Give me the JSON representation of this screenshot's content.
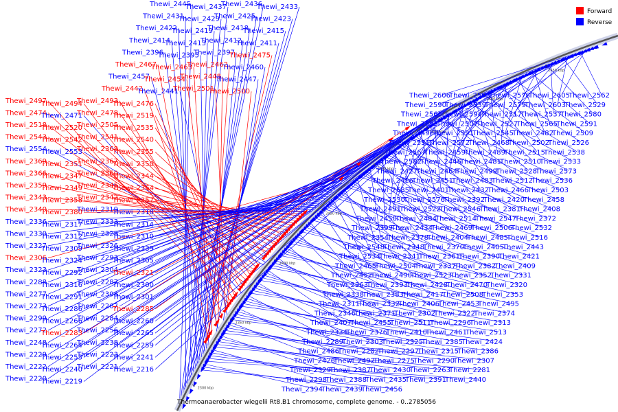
{
  "caption": "Thermoanaerobacter wiegelii Rt8.B1 chromosome, complete genome. - 0..2785056",
  "legend": [
    {
      "label": "Forward",
      "color": "#ff0000"
    },
    {
      "label": "Reverse",
      "color": "#0000ff"
    }
  ],
  "colors": {
    "forward": "#ff0000",
    "reverse": "#0000ff",
    "backbone": "#555555",
    "backbone_light": "#cfd3e8"
  },
  "ticks": [
    "2300 kbp",
    "2350 kbp",
    "2400 kbp",
    "2450 kbp",
    "2500 kbp",
    "2550 kbp",
    "2600 kbp",
    "2650 kbp"
  ],
  "labels_left": [
    {
      "id": "Thewi_2445",
      "s": "r"
    },
    {
      "id": "Thewi_2437",
      "s": "r"
    },
    {
      "id": "Thewi_2436",
      "s": "r"
    },
    {
      "id": "Thewi_2433",
      "s": "r"
    },
    {
      "id": "Thewi_2431",
      "s": "r"
    },
    {
      "id": "Thewi_2429",
      "s": "r"
    },
    {
      "id": "Thewi_2425",
      "s": "r"
    },
    {
      "id": "Thewi_2423",
      "s": "r"
    },
    {
      "id": "Thewi_2422",
      "s": "r"
    },
    {
      "id": "Thewi_2419",
      "s": "r"
    },
    {
      "id": "Thewi_2418",
      "s": "r"
    },
    {
      "id": "Thewi_2415",
      "s": "r"
    },
    {
      "id": "Thewi_2414",
      "s": "r"
    },
    {
      "id": "Thewi_2413",
      "s": "r"
    },
    {
      "id": "Thewi_2412",
      "s": "r"
    },
    {
      "id": "Thewi_2411",
      "s": "r"
    },
    {
      "id": "Thewi_2396",
      "s": "r"
    },
    {
      "id": "Thewi_2395",
      "s": "r"
    },
    {
      "id": "Thewi_2397",
      "s": "r"
    },
    {
      "id": "Thewi_2475",
      "s": "f"
    },
    {
      "id": "Thewi_2467",
      "s": "f"
    },
    {
      "id": "Thewi_2463",
      "s": "f"
    },
    {
      "id": "Thewi_2462",
      "s": "f"
    },
    {
      "id": "Thewi_2460",
      "s": "r"
    },
    {
      "id": "Thewi_2457",
      "s": "r"
    },
    {
      "id": "Thewi_2454",
      "s": "f"
    },
    {
      "id": "Thewi_2448",
      "s": "f"
    },
    {
      "id": "Thewi_2447",
      "s": "r"
    },
    {
      "id": "Thewi_2442",
      "s": "f"
    },
    {
      "id": "Thewi_2441",
      "s": "r"
    },
    {
      "id": "Thewi_2501",
      "s": "f"
    },
    {
      "id": "Thewi_2500",
      "s": "f"
    },
    {
      "id": "Thewi_2497",
      "s": "f"
    },
    {
      "id": "Thewi_2494",
      "s": "f"
    },
    {
      "id": "Thewi_2493",
      "s": "f"
    },
    {
      "id": "Thewi_2476",
      "s": "f"
    },
    {
      "id": "Thewi_2474",
      "s": "f"
    },
    {
      "id": "Thewi_2471",
      "s": "r"
    },
    {
      "id": "Thewi_2478",
      "s": "f"
    },
    {
      "id": "Thewi_2519",
      "s": "f"
    },
    {
      "id": "Thewi_2518",
      "s": "f"
    },
    {
      "id": "Thewi_2520",
      "s": "f"
    },
    {
      "id": "Thewi_2505",
      "s": "f"
    },
    {
      "id": "Thewi_2535",
      "s": "f"
    },
    {
      "id": "Thewi_2543",
      "s": "f"
    },
    {
      "id": "Thewi_2542",
      "s": "f"
    },
    {
      "id": "Thewi_2541",
      "s": "f"
    },
    {
      "id": "Thewi_2540",
      "s": "f"
    },
    {
      "id": "Thewi_2554",
      "s": "r"
    },
    {
      "id": "Thewi_2553",
      "s": "r"
    },
    {
      "id": "Thewi_2368",
      "s": "f"
    },
    {
      "id": "Thewi_2355",
      "s": "f"
    },
    {
      "id": "Thewi_2369",
      "s": "f"
    },
    {
      "id": "Thewi_2351",
      "s": "f"
    },
    {
      "id": "Thewi_2367",
      "s": "f"
    },
    {
      "id": "Thewi_2350",
      "s": "f"
    },
    {
      "id": "Thewi_2366",
      "s": "f"
    },
    {
      "id": "Thewi_2347",
      "s": "f"
    },
    {
      "id": "Thewi_2360",
      "s": "f"
    },
    {
      "id": "Thewi_2344",
      "s": "f"
    },
    {
      "id": "Thewi_2359",
      "s": "f"
    },
    {
      "id": "Thewi_2349",
      "s": "f"
    },
    {
      "id": "Thewi_2345",
      "s": "f"
    },
    {
      "id": "Thewi_2364",
      "s": "f"
    },
    {
      "id": "Thewi_2343",
      "s": "f"
    },
    {
      "id": "Thewi_2358",
      "s": "f"
    },
    {
      "id": "Thewi_2342",
      "s": "f"
    },
    {
      "id": "Thewi_2357",
      "s": "f"
    },
    {
      "id": "Thewi_2340",
      "s": "f"
    },
    {
      "id": "Thewi_2380",
      "s": "f"
    },
    {
      "id": "Thewi_2319",
      "s": "r"
    },
    {
      "id": "Thewi_2318",
      "s": "r"
    },
    {
      "id": "Thewi_2336",
      "s": "r"
    },
    {
      "id": "Thewi_2317",
      "s": "r"
    },
    {
      "id": "Thewi_2333",
      "s": "r"
    },
    {
      "id": "Thewi_2314",
      "s": "r"
    },
    {
      "id": "Thewi_2330",
      "s": "r"
    },
    {
      "id": "Thewi_2312",
      "s": "r"
    },
    {
      "id": "Thewi_2328",
      "s": "r"
    },
    {
      "id": "Thewi_2310",
      "s": "r"
    },
    {
      "id": "Thewi_2327",
      "s": "r"
    },
    {
      "id": "Thewi_2309",
      "s": "r"
    },
    {
      "id": "Thewi_2326",
      "s": "r"
    },
    {
      "id": "Thewi_2339",
      "s": "r"
    },
    {
      "id": "Thewi_2306",
      "s": "f"
    },
    {
      "id": "Thewi_2324",
      "s": "r"
    },
    {
      "id": "Thewi_2293",
      "s": "r"
    },
    {
      "id": "Thewi_2305",
      "s": "r"
    },
    {
      "id": "Thewi_2323",
      "s": "r"
    },
    {
      "id": "Thewi_2292",
      "s": "r"
    },
    {
      "id": "Thewi_2304",
      "s": "r"
    },
    {
      "id": "Thewi_2321",
      "s": "f"
    },
    {
      "id": "Thewi_2288",
      "s": "r"
    },
    {
      "id": "Thewi_2316",
      "s": "r"
    },
    {
      "id": "Thewi_2287",
      "s": "r"
    },
    {
      "id": "Thewi_2300",
      "s": "r"
    },
    {
      "id": "Thewi_2277",
      "s": "r"
    },
    {
      "id": "Thewi_2291",
      "s": "r"
    },
    {
      "id": "Thewi_2308",
      "s": "r"
    },
    {
      "id": "Thewi_2301",
      "s": "r"
    },
    {
      "id": "Thewi_2273",
      "s": "r"
    },
    {
      "id": "Thewi_2286",
      "s": "r"
    },
    {
      "id": "Thewi_2267",
      "s": "r"
    },
    {
      "id": "Thewi_2285",
      "s": "f"
    },
    {
      "id": "Thewi_2299",
      "s": "r"
    },
    {
      "id": "Thewi_2266",
      "s": "r"
    },
    {
      "id": "Thewi_2284",
      "s": "r"
    },
    {
      "id": "Thewi_2260",
      "s": "r"
    },
    {
      "id": "Thewi_2272",
      "s": "r"
    },
    {
      "id": "Thewi_2283",
      "s": "f"
    },
    {
      "id": "Thewi_2256",
      "s": "r"
    },
    {
      "id": "Thewi_2265",
      "s": "r"
    },
    {
      "id": "Thewi_2248",
      "s": "r"
    },
    {
      "id": "Thewi_2264",
      "s": "r"
    },
    {
      "id": "Thewi_2238",
      "s": "r"
    },
    {
      "id": "Thewi_2259",
      "s": "r"
    },
    {
      "id": "Thewi_2229",
      "s": "r"
    },
    {
      "id": "Thewi_2253",
      "s": "r"
    },
    {
      "id": "Thewi_2223",
      "s": "r"
    },
    {
      "id": "Thewi_2241",
      "s": "r"
    },
    {
      "id": "Thewi_2222",
      "s": "r"
    },
    {
      "id": "Thewi_2240",
      "s": "r"
    },
    {
      "id": "Thewi_2221",
      "s": "r"
    },
    {
      "id": "Thewi_2216",
      "s": "r"
    },
    {
      "id": "Thewi_2220",
      "s": "r"
    },
    {
      "id": "Thewi_2219",
      "s": "r"
    }
  ],
  "labels_right": [
    {
      "id": "Thewi_2606",
      "s": "r"
    },
    {
      "id": "Thewi_2593",
      "s": "r"
    },
    {
      "id": "Thewi_2578",
      "s": "r"
    },
    {
      "id": "Thewi_2605",
      "s": "r"
    },
    {
      "id": "Thewi_2562",
      "s": "r"
    },
    {
      "id": "Thewi_2590",
      "s": "r"
    },
    {
      "id": "Thewi_2539",
      "s": "r"
    },
    {
      "id": "Thewi_2579",
      "s": "r"
    },
    {
      "id": "Thewi_2603",
      "s": "r"
    },
    {
      "id": "Thewi_2529",
      "s": "r"
    },
    {
      "id": "Thewi_2566",
      "s": "r"
    },
    {
      "id": "Thewi_2594",
      "s": "r"
    },
    {
      "id": "Thewi_2517",
      "s": "r"
    },
    {
      "id": "Thewi_2537",
      "s": "r"
    },
    {
      "id": "Thewi_2580",
      "s": "r"
    },
    {
      "id": "Thewi_2595",
      "s": "r"
    },
    {
      "id": "Thewi_2507",
      "s": "r"
    },
    {
      "id": "Thewi_2527",
      "s": "r"
    },
    {
      "id": "Thewi_2565",
      "s": "r"
    },
    {
      "id": "Thewi_2591",
      "s": "r"
    },
    {
      "id": "Thewi_2496",
      "s": "r"
    },
    {
      "id": "Thewi_2521",
      "s": "r"
    },
    {
      "id": "Thewi_2545",
      "s": "r"
    },
    {
      "id": "Thewi_2482",
      "s": "r"
    },
    {
      "id": "Thewi_2509",
      "s": "r"
    },
    {
      "id": "Thewi_2531",
      "s": "r"
    },
    {
      "id": "Thewi_2572",
      "s": "r"
    },
    {
      "id": "Thewi_2468",
      "s": "r"
    },
    {
      "id": "Thewi_2502",
      "s": "r"
    },
    {
      "id": "Thewi_2526",
      "s": "r"
    },
    {
      "id": "Thewi_2567",
      "s": "r"
    },
    {
      "id": "Thewi_2459",
      "s": "r"
    },
    {
      "id": "Thewi_2489",
      "s": "r"
    },
    {
      "id": "Thewi_2515",
      "s": "r"
    },
    {
      "id": "Thewi_2538",
      "s": "r"
    },
    {
      "id": "Thewi_2582",
      "s": "r"
    },
    {
      "id": "Thewi_2446",
      "s": "r"
    },
    {
      "id": "Thewi_2481",
      "s": "r"
    },
    {
      "id": "Thewi_2510",
      "s": "r"
    },
    {
      "id": "Thewi_2533",
      "s": "r"
    },
    {
      "id": "Thewi_2427",
      "s": "r"
    },
    {
      "id": "Thewi_2464",
      "s": "r"
    },
    {
      "id": "Thewi_2499",
      "s": "r"
    },
    {
      "id": "Thewi_2528",
      "s": "r"
    },
    {
      "id": "Thewi_2573",
      "s": "r"
    },
    {
      "id": "Thewi_2416",
      "s": "r"
    },
    {
      "id": "Thewi_2451",
      "s": "r"
    },
    {
      "id": "Thewi_2483",
      "s": "r"
    },
    {
      "id": "Thewi_2512",
      "s": "r"
    },
    {
      "id": "Thewi_2536",
      "s": "r"
    },
    {
      "id": "Thewi_2585",
      "s": "r"
    },
    {
      "id": "Thewi_2401",
      "s": "r"
    },
    {
      "id": "Thewi_2432",
      "s": "r"
    },
    {
      "id": "Thewi_2466",
      "s": "r"
    },
    {
      "id": "Thewi_2503",
      "s": "r"
    },
    {
      "id": "Thewi_2530",
      "s": "r"
    },
    {
      "id": "Thewi_2576",
      "s": "r"
    },
    {
      "id": "Thewi_2392",
      "s": "r"
    },
    {
      "id": "Thewi_2420",
      "s": "r"
    },
    {
      "id": "Thewi_2458",
      "s": "r"
    },
    {
      "id": "Thewi_2491",
      "s": "r"
    },
    {
      "id": "Thewi_2522",
      "s": "r"
    },
    {
      "id": "Thewi_2546",
      "s": "r"
    },
    {
      "id": "Thewi_2381",
      "s": "r"
    },
    {
      "id": "Thewi_2408",
      "s": "r"
    },
    {
      "id": "Thewi_2450",
      "s": "r"
    },
    {
      "id": "Thewi_2484",
      "s": "r"
    },
    {
      "id": "Thewi_2514",
      "s": "r"
    },
    {
      "id": "Thewi_2547",
      "s": "r"
    },
    {
      "id": "Thewi_2372",
      "s": "r"
    },
    {
      "id": "Thewi_2399",
      "s": "r"
    },
    {
      "id": "Thewi_2434",
      "s": "r"
    },
    {
      "id": "Thewi_2469",
      "s": "r"
    },
    {
      "id": "Thewi_2506",
      "s": "r"
    },
    {
      "id": "Thewi_2532",
      "s": "r"
    },
    {
      "id": "Thewi_2354",
      "s": "r"
    },
    {
      "id": "Thewi_2378",
      "s": "r"
    },
    {
      "id": "Thewi_2404",
      "s": "r"
    },
    {
      "id": "Thewi_2485",
      "s": "r"
    },
    {
      "id": "Thewi_2516",
      "s": "r"
    },
    {
      "id": "Thewi_2548",
      "s": "r"
    },
    {
      "id": "Thewi_2348",
      "s": "r"
    },
    {
      "id": "Thewi_2370",
      "s": "r"
    },
    {
      "id": "Thewi_2405",
      "s": "r"
    },
    {
      "id": "Thewi_2443",
      "s": "r"
    },
    {
      "id": "Thewi_2534",
      "s": "r"
    },
    {
      "id": "Thewi_2341",
      "s": "r"
    },
    {
      "id": "Thewi_2361",
      "s": "r"
    },
    {
      "id": "Thewi_2390",
      "s": "r"
    },
    {
      "id": "Thewi_2421",
      "s": "r"
    },
    {
      "id": "Thewi_2465",
      "s": "r"
    },
    {
      "id": "Thewi_2504",
      "s": "r"
    },
    {
      "id": "Thewi_2337",
      "s": "r"
    },
    {
      "id": "Thewi_2382",
      "s": "r"
    },
    {
      "id": "Thewi_2409",
      "s": "r"
    },
    {
      "id": "Thewi_2452",
      "s": "r"
    },
    {
      "id": "Thewi_2490",
      "s": "r"
    },
    {
      "id": "Thewi_2523",
      "s": "r"
    },
    {
      "id": "Thewi_2352",
      "s": "r"
    },
    {
      "id": "Thewi_2331",
      "s": "r"
    },
    {
      "id": "Thewi_2363",
      "s": "r"
    },
    {
      "id": "Thewi_2393",
      "s": "r"
    },
    {
      "id": "Thewi_2428",
      "s": "r"
    },
    {
      "id": "Thewi_2470",
      "s": "r"
    },
    {
      "id": "Thewi_2320",
      "s": "r"
    },
    {
      "id": "Thewi_2338",
      "s": "r"
    },
    {
      "id": "Thewi_2383",
      "s": "r"
    },
    {
      "id": "Thewi_2417",
      "s": "r"
    },
    {
      "id": "Thewi_2508",
      "s": "r"
    },
    {
      "id": "Thewi_2353",
      "s": "r"
    },
    {
      "id": "Thewi_2311",
      "s": "r"
    },
    {
      "id": "Thewi_2332",
      "s": "r"
    },
    {
      "id": "Thewi_2406",
      "s": "r"
    },
    {
      "id": "Thewi_2453",
      "s": "r"
    },
    {
      "id": "Thewi_2495",
      "s": "r"
    },
    {
      "id": "Thewi_2346",
      "s": "r"
    },
    {
      "id": "Thewi_2371",
      "s": "r"
    },
    {
      "id": "Thewi_2302",
      "s": "r"
    },
    {
      "id": "Thewi_2322",
      "s": "r"
    },
    {
      "id": "Thewi_2374",
      "s": "r"
    },
    {
      "id": "Thewi_2407",
      "s": "r"
    },
    {
      "id": "Thewi_2455",
      "s": "r"
    },
    {
      "id": "Thewi_2511",
      "s": "r"
    },
    {
      "id": "Thewi_2296",
      "s": "r"
    },
    {
      "id": "Thewi_2313",
      "s": "r"
    },
    {
      "id": "Thewi_2334",
      "s": "r"
    },
    {
      "id": "Thewi_2376",
      "s": "r"
    },
    {
      "id": "Thewi_2410",
      "s": "r"
    },
    {
      "id": "Thewi_2461",
      "s": "r"
    },
    {
      "id": "Thewi_2513",
      "s": "r"
    },
    {
      "id": "Thewi_2289",
      "s": "r"
    },
    {
      "id": "Thewi_2303",
      "s": "r"
    },
    {
      "id": "Thewi_2325",
      "s": "r"
    },
    {
      "id": "Thewi_2385",
      "s": "r"
    },
    {
      "id": "Thewi_2424",
      "s": "r"
    },
    {
      "id": "Thewi_2486",
      "s": "r"
    },
    {
      "id": "Thewi_2282",
      "s": "r"
    },
    {
      "id": "Thewi_2297",
      "s": "r"
    },
    {
      "id": "Thewi_2315",
      "s": "r"
    },
    {
      "id": "Thewi_2386",
      "s": "r"
    },
    {
      "id": "Thewi_2426",
      "s": "r"
    },
    {
      "id": "Thewi_2492",
      "s": "r"
    },
    {
      "id": "Thewi_2275",
      "s": "r"
    },
    {
      "id": "Thewi_2290",
      "s": "r"
    },
    {
      "id": "Thewi_2307",
      "s": "r"
    },
    {
      "id": "Thewi_2329",
      "s": "r"
    },
    {
      "id": "Thewi_2387",
      "s": "r"
    },
    {
      "id": "Thewi_2430",
      "s": "r"
    },
    {
      "id": "Thewi_2263",
      "s": "r"
    },
    {
      "id": "Thewi_2281",
      "s": "r"
    },
    {
      "id": "Thewi_2298",
      "s": "r"
    },
    {
      "id": "Thewi_2388",
      "s": "r"
    },
    {
      "id": "Thewi_2435",
      "s": "r"
    },
    {
      "id": "Thewi_2391",
      "s": "r"
    },
    {
      "id": "Thewi_2440",
      "s": "r"
    },
    {
      "id": "Thewi_2394",
      "s": "r"
    },
    {
      "id": "Thewi_2439",
      "s": "r"
    },
    {
      "id": "Thewi_2456",
      "s": "r"
    }
  ]
}
